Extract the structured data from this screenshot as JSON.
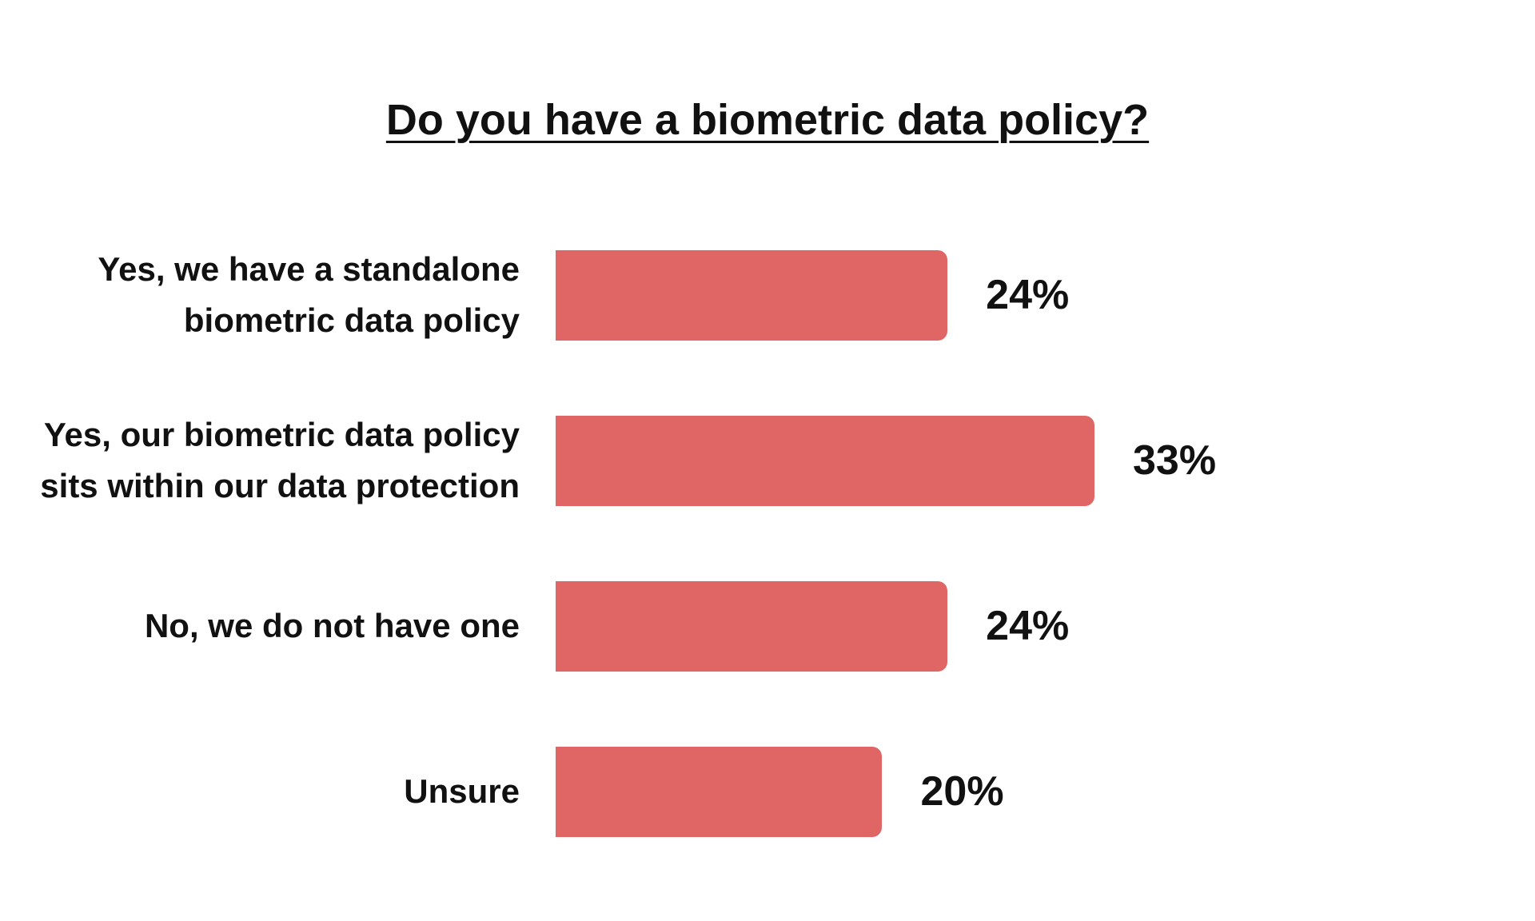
{
  "chart_data": {
    "type": "bar",
    "orientation": "horizontal",
    "title": "Do you have a biometric data policy?",
    "categories": [
      "Yes, we have a standalone\nbiometric data policy",
      "Yes, our biometric data policy\nsits within our data protection",
      "No, we do not have one",
      "Unsure"
    ],
    "series": [
      {
        "values": [
          24,
          33,
          24,
          20
        ],
        "value_labels": [
          "24%",
          "33%",
          "24%",
          "20%"
        ]
      }
    ],
    "unit": "%",
    "xlabel": "",
    "ylabel": "",
    "xlim": [
      0,
      33
    ],
    "grid": false,
    "legend": "none",
    "bar_color": "#E06666",
    "background": "#FFFFFF",
    "text_color": "#111111"
  }
}
